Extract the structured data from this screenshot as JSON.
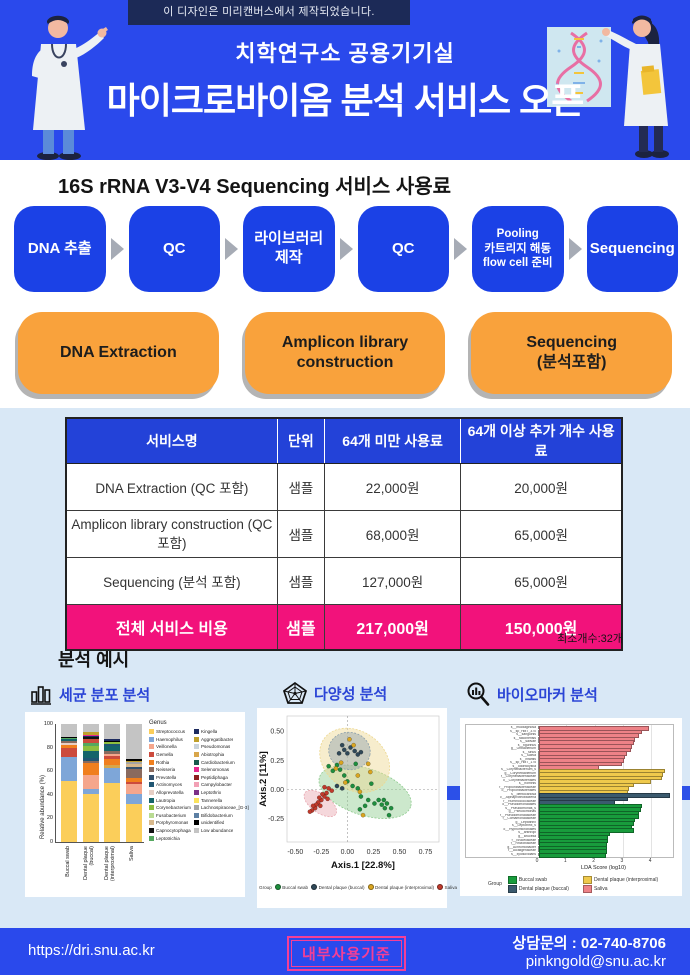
{
  "colors": {
    "blue_main": "#2A49EC",
    "blue_flow": "#1B41E6",
    "blue_table_header": "#2342D8",
    "navy_banner": "#1C2A57",
    "orange": "#F9A23C",
    "pink": "#F2127B",
    "section_light_blue": "#D9E8F6",
    "label_blue": "#2B45D6",
    "stamp_pink": "#F43F96"
  },
  "header": {
    "watermark": "이 디자인은 미리캔버스에서 제작되었습니다.",
    "subtitle": "치학연구소 공용기기실",
    "title": "마이크로바이옴 분석 서비스 오픈"
  },
  "pricing": {
    "section_title": "16S rRNA V3-V4 Sequencing 서비스 사용료",
    "flow_steps": [
      [
        "DNA 추출"
      ],
      [
        "QC"
      ],
      [
        "라이브러리",
        "제작"
      ],
      [
        "QC"
      ],
      [
        "Pooling",
        "카트리지 해동",
        "flow cell 준비"
      ],
      [
        "Sequencing"
      ]
    ],
    "stages": [
      [
        "DNA Extraction"
      ],
      [
        "Amplicon library",
        "construction"
      ],
      [
        "Sequencing",
        "(분석포함)"
      ]
    ],
    "table": {
      "headers": [
        "서비스명",
        "단위",
        "64개  미만 사용료",
        "64개 이상 추가 개수 사용료"
      ],
      "rows": [
        {
          "name": "DNA Extraction (QC 포함)",
          "unit": "샘플",
          "under_64": "22,000원",
          "over_64": "20,000원",
          "highlight": false
        },
        {
          "name": "Amplicon library construction (QC 포함)",
          "unit": "샘플",
          "under_64": "68,000원",
          "over_64": "65,000원",
          "highlight": false
        },
        {
          "name": "Sequencing (분석 포함)",
          "unit": "샘플",
          "under_64": "127,000원",
          "over_64": "65,000원",
          "highlight": false
        },
        {
          "name": "전체 서비스 비용",
          "unit": "샘플",
          "under_64": "217,000원",
          "over_64": "150,000원",
          "highlight": true
        }
      ]
    },
    "min_note": "최소개수:32개"
  },
  "analysis": {
    "title": "분석 예시",
    "items": [
      {
        "icon": "bar-chart-icon",
        "label": "세균 분포 분석"
      },
      {
        "icon": "radar-pentagon-icon",
        "label": "다양성 분석"
      },
      {
        "icon": "magnifier-bars-icon",
        "label": "바이오마커 분석"
      }
    ]
  },
  "footer": {
    "url": "https://dri.snu.ac.kr",
    "stamp": "내부사용기준",
    "phone_line": "상담문의 : 02-740-8706",
    "email": "pinkngold@snu.ac.kr"
  },
  "chart_data": [
    {
      "type": "bar",
      "subtype": "stacked_percent",
      "ylabel": "Relative abundance (%)",
      "ylim": [
        0,
        100
      ],
      "yticks": [
        0,
        20,
        40,
        60,
        80,
        100
      ],
      "categories": [
        "Buccal swab",
        "Dental plaque\n(buccal)",
        "Dental plaque\n(interproximal)",
        "Saliva"
      ],
      "legend_title": "Genus",
      "legend_position": "right",
      "genus_colors": {
        "Streptococcus": "#FBCE5A",
        "Haemophilus": "#7EA6D8",
        "Veillonella": "#F5A68C",
        "Gemella": "#CC4B3D",
        "Rothia": "#F07F1E",
        "Neisseria": "#8A6A5E",
        "Prevotella": "#33516E",
        "Actinomyces": "#1F5673",
        "Alloprevotella": "#E7CFC5",
        "Lautropia": "#14646A",
        "Corynebacterium": "#8DBE3F",
        "Fusobacterium": "#B9DB92",
        "Porphyromonas": "#D9B98C",
        "Capnocytophaga": "#121212",
        "Leptotrichia": "#55A860",
        "Kingella": "#1D2B5F",
        "Aggregatibacter": "#BFA02C",
        "Pseudomonas": "#C9D3DB",
        "Abiotrophia": "#D8A64A",
        "Cardiobacterium": "#175B4C",
        "Selenomonas": "#E8298E",
        "Peptidiphaga": "#8E1F1F",
        "Campylobacter": "#F2A0B5",
        "Leptothrix": "#7C3087",
        "Tannerella": "#FBE35C",
        "Lachnospiraceae_[G-3]": "#A5A5A5",
        "Bifidobacterium": "#5C7FA3",
        "unidentified": "#000000",
        "Low abundance": "#C4C4C4"
      },
      "legend_col1": [
        "Streptococcus",
        "Haemophilus",
        "Veillonella",
        "Gemella",
        "Rothia",
        "Neisseria",
        "Prevotella",
        "Actinomyces",
        "Alloprevotella",
        "Lautropia",
        "Corynebacterium",
        "Fusobacterium",
        "Porphyromonas",
        "Capnocytophaga",
        "Leptotrichia"
      ],
      "legend_col2": [
        "Kingella",
        "Aggregatibacter",
        "Pseudomonas",
        "Abiotrophia",
        "Cardiobacterium",
        "Selenomonas",
        "Peptidiphaga",
        "Campylobacter",
        "Leptothrix",
        "Tannerella",
        "Lachnospiraceae_[G-3]",
        "Bifidobacterium",
        "unidentified",
        "Low abundance"
      ],
      "stacks": [
        [
          {
            "g": "Streptococcus",
            "v": 52
          },
          {
            "g": "Haemophilus",
            "v": 20
          },
          {
            "g": "Gemella",
            "v": 8
          },
          {
            "g": "Rothia",
            "v": 2
          },
          {
            "g": "Alloprevotella",
            "v": 2
          },
          {
            "g": "Neisseria",
            "v": 2
          },
          {
            "g": "Lautropia",
            "v": 1
          },
          {
            "g": "Leptotrichia",
            "v": 1
          },
          {
            "g": "unidentified",
            "v": 1
          },
          {
            "g": "Low abundance",
            "v": 11
          }
        ],
        [
          {
            "g": "Streptococcus",
            "v": 41
          },
          {
            "g": "Haemophilus",
            "v": 4
          },
          {
            "g": "Veillonella",
            "v": 12
          },
          {
            "g": "Rothia",
            "v": 10
          },
          {
            "g": "Neisseria",
            "v": 2
          },
          {
            "g": "Actinomyces",
            "v": 2
          },
          {
            "g": "Lautropia",
            "v": 6
          },
          {
            "g": "Corynebacterium",
            "v": 4
          },
          {
            "g": "Leptotrichia",
            "v": 3
          },
          {
            "g": "Gemella",
            "v": 3
          },
          {
            "g": "Capnocytophaga",
            "v": 2
          },
          {
            "g": "Kingella",
            "v": 1
          },
          {
            "g": "Selenomonas",
            "v": 1
          },
          {
            "g": "Aggregatibacter",
            "v": 2
          },
          {
            "g": "Low abundance",
            "v": 7
          }
        ],
        [
          {
            "g": "Streptococcus",
            "v": 50
          },
          {
            "g": "Haemophilus",
            "v": 13
          },
          {
            "g": "Abiotrophia",
            "v": 2
          },
          {
            "g": "Rothia",
            "v": 5
          },
          {
            "g": "Gemella",
            "v": 3
          },
          {
            "g": "Veillonella",
            "v": 2
          },
          {
            "g": "Neisseria",
            "v": 2
          },
          {
            "g": "Lautropia",
            "v": 4
          },
          {
            "g": "Actinomyces",
            "v": 2
          },
          {
            "g": "Corynebacterium",
            "v": 2
          },
          {
            "g": "unidentified",
            "v": 1
          },
          {
            "g": "Kingella",
            "v": 1
          },
          {
            "g": "Low abundance",
            "v": 13
          }
        ],
        [
          {
            "g": "Streptococcus",
            "v": 32
          },
          {
            "g": "Haemophilus",
            "v": 9
          },
          {
            "g": "Veillonella",
            "v": 8
          },
          {
            "g": "Gemella",
            "v": 2
          },
          {
            "g": "Rothia",
            "v": 3
          },
          {
            "g": "Neisseria",
            "v": 8
          },
          {
            "g": "Prevotella",
            "v": 2
          },
          {
            "g": "Porphyromonas",
            "v": 2
          },
          {
            "g": "Lachnospiraceae_[G-3]",
            "v": 2
          },
          {
            "g": "Aggregatibacter",
            "v": 1
          },
          {
            "g": "unidentified",
            "v": 1
          },
          {
            "g": "Low abundance",
            "v": 30
          }
        ]
      ]
    },
    {
      "type": "scatter",
      "subtype": "pcoa_with_ellipses",
      "xlabel": "Axis.1   [22.8%]",
      "ylabel": "Axis.2   [11%]",
      "xlim": [
        -0.58,
        0.88
      ],
      "ylim": [
        -0.45,
        0.63
      ],
      "xticks": [
        {
          "v": -0.5,
          "t": "-0.50"
        },
        {
          "v": -0.25,
          "t": "-0.25"
        },
        {
          "v": 0,
          "t": "0.00"
        },
        {
          "v": 0.25,
          "t": "0.25"
        },
        {
          "v": 0.5,
          "t": "0.50"
        },
        {
          "v": 0.75,
          "t": "0.75"
        }
      ],
      "yticks": [
        {
          "v": -0.25,
          "t": "-0.25"
        },
        {
          "v": 0,
          "t": "0.00"
        },
        {
          "v": 0.25,
          "t": "0.25"
        },
        {
          "v": 0.5,
          "t": "0.50"
        }
      ],
      "legend_title": "Group",
      "groups": [
        {
          "name": "Buccal swab",
          "color": "#1E8E3E"
        },
        {
          "name": "Dental plaque (buccal)",
          "color": "#2F4858"
        },
        {
          "name": "Dental plaque (interproximal)",
          "color": "#D9A520"
        },
        {
          "name": "Saliva",
          "color": "#C0392B"
        }
      ],
      "ellipses": [
        {
          "group": "Buccal swab",
          "fill": "#8FCB8F",
          "cx": 0.17,
          "cy": -0.02,
          "rx": 0.46,
          "ry": 0.2,
          "rot": 18
        },
        {
          "group": "Dental plaque (interproximal)",
          "fill": "#EDD890",
          "cx": 0.07,
          "cy": 0.25,
          "rx": 0.36,
          "ry": 0.25,
          "rot": 35
        },
        {
          "group": "Dental plaque (buccal)",
          "fill": "#8CA0AC",
          "cx": 0.02,
          "cy": 0.33,
          "rx": 0.2,
          "ry": 0.16,
          "rot": 10
        },
        {
          "group": "Saliva",
          "fill": "#E8A7B0",
          "cx": -0.26,
          "cy": -0.12,
          "rx": 0.18,
          "ry": 0.08,
          "rot": 35
        }
      ],
      "points": {
        "Buccal swab": [
          [
            -0.18,
            0.2
          ],
          [
            -0.14,
            0.16
          ],
          [
            -0.1,
            0.21
          ],
          [
            -0.07,
            0.17
          ],
          [
            -0.03,
            0.12
          ],
          [
            0,
            0.07
          ],
          [
            0.05,
            0.03
          ],
          [
            0.08,
            0.22
          ],
          [
            0.1,
            0.01
          ],
          [
            0.13,
            -0.06
          ],
          [
            0.17,
            -0.14
          ],
          [
            0.2,
            -0.09
          ],
          [
            0.23,
            0.05
          ],
          [
            0.26,
            -0.12
          ],
          [
            0.3,
            -0.09
          ],
          [
            0.33,
            -0.13
          ],
          [
            0.35,
            -0.09
          ],
          [
            0.36,
            -0.16
          ],
          [
            0.38,
            -0.12
          ],
          [
            0.4,
            -0.22
          ],
          [
            0.42,
            -0.16
          ],
          [
            0.12,
            -0.17
          ]
        ],
        "Dental plaque (buccal)": [
          [
            -0.08,
            0.31
          ],
          [
            -0.05,
            0.38
          ],
          [
            -0.03,
            0.34
          ],
          [
            0,
            0.31
          ],
          [
            0.03,
            0.36
          ],
          [
            0.07,
            0.33
          ],
          [
            0.1,
            0.3
          ],
          [
            0.13,
            0.32
          ],
          [
            -0.1,
            0.03
          ],
          [
            -0.05,
            0.01
          ]
        ],
        "Dental plaque (interproximal)": [
          [
            0.02,
            0.43
          ],
          [
            0.06,
            0.38
          ],
          [
            -0.06,
            0.23
          ],
          [
            -0.11,
            0.18
          ],
          [
            0.2,
            0.22
          ],
          [
            0.22,
            0.15
          ],
          [
            0.12,
            -0.02
          ],
          [
            0.15,
            -0.22
          ],
          [
            -0.02,
            0.06
          ],
          [
            0.1,
            0.12
          ]
        ],
        "Saliva": [
          [
            -0.15,
            -0.01
          ],
          [
            -0.18,
            0.01
          ],
          [
            -0.2,
            -0.03
          ],
          [
            -0.22,
            -0.06
          ],
          [
            -0.24,
            -0.04
          ],
          [
            -0.25,
            -0.09
          ],
          [
            -0.27,
            -0.07
          ],
          [
            -0.28,
            -0.11
          ],
          [
            -0.3,
            -0.13
          ],
          [
            -0.31,
            -0.16
          ],
          [
            -0.33,
            -0.14
          ],
          [
            -0.34,
            -0.18
          ],
          [
            -0.36,
            -0.19
          ],
          [
            -0.22,
            0.02
          ],
          [
            -0.19,
            -0.08
          ],
          [
            -0.26,
            -0.14
          ]
        ]
      }
    },
    {
      "type": "bar",
      "subtype": "horizontal_lda",
      "xlabel": "LDA Score (log10)",
      "xlim": [
        0,
        4.7
      ],
      "xticks": [
        0,
        1,
        2,
        3,
        4
      ],
      "legend_title": "Group",
      "group_colors": {
        "Buccal swab": "#189C3C",
        "Dental plaque (buccal)": "#3B5A6E",
        "Dental plaque (interproximal)": "#EFC94C",
        "Saliva": "#ED8287"
      },
      "legend_order": [
        "Buccal swab",
        "Dental plaque (buccal)",
        "Dental plaque (interproximal)",
        "Saliva"
      ],
      "bars": [
        {
          "label": "s__mucilaginosa",
          "value": 3.85,
          "group": "Saliva"
        },
        {
          "label": "s__sp_HMT_370",
          "value": 3.6,
          "group": "Saliva"
        },
        {
          "label": "s__sanguinis",
          "value": 3.5,
          "group": "Saliva"
        },
        {
          "label": "s__falconensis",
          "value": 3.35,
          "group": "Saliva"
        },
        {
          "label": "s__salivae",
          "value": 3.3,
          "group": "Saliva"
        },
        {
          "label": "s__tigurinus",
          "value": 3.25,
          "group": "Saliva"
        },
        {
          "label": "g__Oribacterium",
          "value": 3.2,
          "group": "Saliva"
        },
        {
          "label": "s__sinus",
          "value": 3.05,
          "group": "Saliva"
        },
        {
          "label": "s__Saliva",
          "value": 3.0,
          "group": "Saliva"
        },
        {
          "label": "s__infantis",
          "value": 2.95,
          "group": "Saliva"
        },
        {
          "label": "s__sp_HMT_175",
          "value": 2.9,
          "group": "Saliva"
        },
        {
          "label": "s__odontolytica",
          "value": 2.05,
          "group": "Saliva"
        },
        {
          "label": "s__Corynebacterium_s",
          "value": 4.4,
          "group": "Dental plaque (interproximal)"
        },
        {
          "label": "g__Corynebacterium",
          "value": 4.35,
          "group": "Dental plaque (interproximal)"
        },
        {
          "label": "f__Corynebacteriaceae",
          "value": 4.3,
          "group": "Dental plaque (interproximal)"
        },
        {
          "label": "o__Corynebacteriales",
          "value": 3.9,
          "group": "Dental plaque (interproximal)"
        },
        {
          "label": "s__hominis",
          "value": 3.3,
          "group": "Dental plaque (interproximal)"
        },
        {
          "label": "f__Propionibacteriaceae",
          "value": 3.15,
          "group": "Dental plaque (interproximal)"
        },
        {
          "label": "o__Propionibacteriales",
          "value": 3.1,
          "group": "Dental plaque (interproximal)"
        },
        {
          "label": "s__dentocariosa",
          "value": 4.6,
          "group": "Dental plaque (buccal)"
        },
        {
          "label": "c__Alphaproteobacteria",
          "value": 3.1,
          "group": "Dental plaque (buccal)"
        },
        {
          "label": "f__Ruminococcaceae",
          "value": 2.65,
          "group": "Dental plaque (buccal)"
        },
        {
          "label": "o__Pseudomonadales",
          "value": 3.6,
          "group": "Buccal swab"
        },
        {
          "label": "s__Pseudomonas_s",
          "value": 3.55,
          "group": "Buccal swab"
        },
        {
          "label": "g__Pseudomonas",
          "value": 3.5,
          "group": "Buccal swab"
        },
        {
          "label": "f__Pseudomonadaceae",
          "value": 3.5,
          "group": "Buccal swab"
        },
        {
          "label": "f__Comamonadaceae",
          "value": 3.35,
          "group": "Buccal swab"
        },
        {
          "label": "g__Leptothrix",
          "value": 3.3,
          "group": "Buccal swab"
        },
        {
          "label": "s__Leptothrix_s",
          "value": 3.25,
          "group": "Buccal swab"
        },
        {
          "label": "o__Hyphomicrobiales",
          "value": 3.3,
          "group": "Buccal swab"
        },
        {
          "label": "s__anthropi",
          "value": 2.45,
          "group": "Buccal swab"
        },
        {
          "label": "g__Brucella",
          "value": 2.4,
          "group": "Buccal swab"
        },
        {
          "label": "f__Brucellaceae",
          "value": 2.4,
          "group": "Buccal swab"
        },
        {
          "label": "f__Rhizobiaceae",
          "value": 2.35,
          "group": "Buccal swab"
        },
        {
          "label": "g__Achromobacter",
          "value": 2.35,
          "group": "Buccal swab"
        },
        {
          "label": "f__Alcaligenaceae",
          "value": 2.35,
          "group": "Buccal swab"
        },
        {
          "label": "s__xylosoxidans",
          "value": 2.3,
          "group": "Buccal swab"
        }
      ]
    }
  ]
}
